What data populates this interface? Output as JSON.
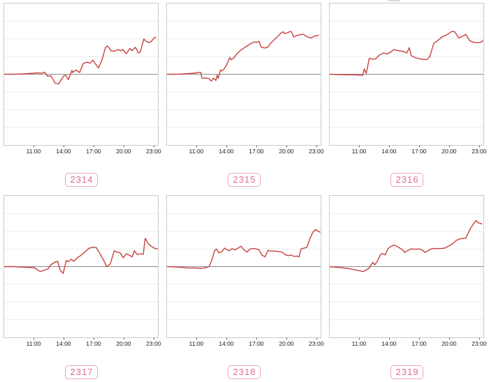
{
  "page": {
    "background": "#ffffff"
  },
  "colors": {
    "line": "#c5423e",
    "zero_line": "#8c8c8c",
    "gridline": "#ececec",
    "chart_border": "#cbcbcb",
    "tick_label_text": "#1a1a1a",
    "badge_text": "#e06d8c",
    "badge_border": "#eba6ba",
    "background": "#ffffff"
  },
  "axis": {
    "tick_labels": [
      "11:00",
      "14:00",
      "17:00",
      "20:00",
      "23:00"
    ],
    "tick_hours": [
      11,
      14,
      17,
      20,
      23
    ]
  },
  "chart_data": [
    {
      "type": "line",
      "label": "2314",
      "xlabel": "",
      "ylabel": "",
      "xlim": [
        8,
        23.5
      ],
      "ylim": [
        -4,
        4
      ],
      "baseline": 0,
      "grid": "horizontal-only",
      "legend": "none",
      "x_tick_labels": [
        "11:00",
        "14:00",
        "17:00",
        "20:00",
        "23:00"
      ],
      "x_tick_hours": [
        11,
        14,
        17,
        20,
        23
      ],
      "points": [
        [
          8,
          0
        ],
        [
          8.5,
          0
        ],
        [
          9,
          0
        ],
        [
          9.5,
          0.01
        ],
        [
          10,
          0.02
        ],
        [
          10.5,
          0.04
        ],
        [
          11,
          0.06
        ],
        [
          11.4,
          0.08
        ],
        [
          11.63,
          0.05
        ],
        [
          12.05,
          0.11
        ],
        [
          12.33,
          -0.11
        ],
        [
          12.67,
          -0.09
        ],
        [
          13.09,
          -0.5
        ],
        [
          13.44,
          -0.55
        ],
        [
          13.93,
          -0.11
        ],
        [
          14.14,
          -0.05
        ],
        [
          14.42,
          -0.3
        ],
        [
          14.77,
          0.22
        ],
        [
          14.84,
          0.1
        ],
        [
          15.19,
          0.24
        ],
        [
          15.54,
          0.1
        ],
        [
          15.89,
          0.6
        ],
        [
          16.23,
          0.68
        ],
        [
          16.58,
          0.63
        ],
        [
          16.86,
          0.8
        ],
        [
          17.07,
          0.63
        ],
        [
          17.42,
          0.35
        ],
        [
          17.77,
          0.8
        ],
        [
          18.12,
          1.5
        ],
        [
          18.33,
          1.6
        ],
        [
          18.68,
          1.33
        ],
        [
          19.02,
          1.3
        ],
        [
          19.37,
          1.4
        ],
        [
          19.65,
          1.33
        ],
        [
          19.86,
          1.4
        ],
        [
          20.21,
          1.16
        ],
        [
          20.56,
          1.46
        ],
        [
          20.77,
          1.33
        ],
        [
          21.12,
          1.53
        ],
        [
          21.4,
          1.2
        ],
        [
          21.61,
          1.26
        ],
        [
          21.96,
          2.0
        ],
        [
          22.17,
          1.86
        ],
        [
          22.45,
          1.8
        ],
        [
          22.66,
          1.83
        ],
        [
          23.01,
          2.06
        ],
        [
          23.15,
          2.1
        ]
      ]
    },
    {
      "type": "line",
      "label": "2315",
      "xlabel": "",
      "ylabel": "",
      "xlim": [
        8,
        23.5
      ],
      "ylim": [
        -4,
        4
      ],
      "baseline": 0,
      "grid": "horizontal-only",
      "legend": "none",
      "x_tick_labels": [
        "11:00",
        "14:00",
        "17:00",
        "20:00",
        "23:00"
      ],
      "x_tick_hours": [
        11,
        14,
        17,
        20,
        23
      ],
      "points": [
        [
          8,
          0
        ],
        [
          9,
          0
        ],
        [
          10,
          0.03
        ],
        [
          10.7,
          0.06
        ],
        [
          11.37,
          0.11
        ],
        [
          11.5,
          -0.22
        ],
        [
          11.84,
          -0.22
        ],
        [
          12.19,
          -0.24
        ],
        [
          12.42,
          -0.39
        ],
        [
          12.66,
          -0.22
        ],
        [
          12.89,
          -0.35
        ],
        [
          13.01,
          -0.06
        ],
        [
          13.12,
          -0.22
        ],
        [
          13.36,
          0.24
        ],
        [
          13.47,
          0.18
        ],
        [
          13.71,
          0.3
        ],
        [
          13.94,
          0.5
        ],
        [
          14.29,
          0.95
        ],
        [
          14.41,
          0.82
        ],
        [
          14.64,
          0.89
        ],
        [
          14.99,
          1.15
        ],
        [
          15.34,
          1.35
        ],
        [
          15.69,
          1.48
        ],
        [
          16.04,
          1.61
        ],
        [
          16.39,
          1.74
        ],
        [
          16.74,
          1.83
        ],
        [
          16.97,
          1.8
        ],
        [
          17.2,
          1.86
        ],
        [
          17.42,
          1.54
        ],
        [
          17.77,
          1.48
        ],
        [
          18.12,
          1.54
        ],
        [
          18.35,
          1.74
        ],
        [
          18.7,
          1.94
        ],
        [
          19.05,
          2.13
        ],
        [
          19.4,
          2.33
        ],
        [
          19.63,
          2.4
        ],
        [
          19.75,
          2.3
        ],
        [
          19.98,
          2.33
        ],
        [
          20.33,
          2.42
        ],
        [
          20.44,
          2.4
        ],
        [
          20.68,
          2.1
        ],
        [
          20.91,
          2.18
        ],
        [
          21.26,
          2.23
        ],
        [
          21.61,
          2.27
        ],
        [
          21.84,
          2.18
        ],
        [
          22.07,
          2.1
        ],
        [
          22.42,
          2.05
        ],
        [
          22.65,
          2.13
        ],
        [
          22.89,
          2.18
        ],
        [
          23.15,
          2.2
        ]
      ]
    },
    {
      "type": "line",
      "label": "2316",
      "xlabel": "",
      "ylabel": "",
      "xlim": [
        8,
        23.5
      ],
      "ylim": [
        -4,
        4
      ],
      "baseline": 0,
      "grid": "horizontal-only",
      "legend": "none",
      "x_tick_labels": [
        "11:00",
        "14:00",
        "17:00",
        "20:00",
        "23:00"
      ],
      "x_tick_hours": [
        11,
        14,
        17,
        20,
        23
      ],
      "points": [
        [
          8,
          0
        ],
        [
          9,
          -0.02
        ],
        [
          10,
          -0.03
        ],
        [
          10.7,
          -0.04
        ],
        [
          11.3,
          -0.05
        ],
        [
          11.45,
          0.3
        ],
        [
          11.65,
          0.05
        ],
        [
          11.95,
          0.9
        ],
        [
          12.3,
          0.85
        ],
        [
          12.6,
          0.88
        ],
        [
          13.0,
          1.1
        ],
        [
          13.4,
          1.2
        ],
        [
          13.7,
          1.15
        ],
        [
          14.1,
          1.25
        ],
        [
          14.4,
          1.4
        ],
        [
          14.7,
          1.35
        ],
        [
          15.0,
          1.32
        ],
        [
          15.4,
          1.28
        ],
        [
          15.7,
          1.2
        ],
        [
          15.95,
          1.5
        ],
        [
          16.15,
          1.05
        ],
        [
          16.5,
          0.95
        ],
        [
          16.9,
          0.88
        ],
        [
          17.3,
          0.85
        ],
        [
          17.7,
          0.82
        ],
        [
          18.0,
          1.0
        ],
        [
          18.4,
          1.75
        ],
        [
          18.8,
          1.9
        ],
        [
          19.2,
          2.1
        ],
        [
          19.6,
          2.2
        ],
        [
          19.9,
          2.3
        ],
        [
          20.2,
          2.42
        ],
        [
          20.5,
          2.4
        ],
        [
          20.9,
          2.05
        ],
        [
          21.3,
          2.15
        ],
        [
          21.6,
          2.25
        ],
        [
          22.0,
          1.9
        ],
        [
          22.4,
          1.8
        ],
        [
          22.8,
          1.78
        ],
        [
          23.1,
          1.8
        ],
        [
          23.3,
          1.9
        ]
      ]
    },
    {
      "type": "line",
      "label": "2317",
      "xlabel": "",
      "ylabel": "",
      "xlim": [
        8,
        23.5
      ],
      "ylim": [
        -4,
        4
      ],
      "baseline": 0,
      "grid": "horizontal-only",
      "legend": "none",
      "x_tick_labels": [
        "11:00",
        "14:00",
        "17:00",
        "20:00",
        "23:00"
      ],
      "x_tick_hours": [
        11,
        14,
        17,
        20,
        23
      ],
      "points": [
        [
          8,
          0
        ],
        [
          9,
          0
        ],
        [
          10,
          -0.03
        ],
        [
          11,
          -0.06
        ],
        [
          11.6,
          -0.28
        ],
        [
          12.0,
          -0.2
        ],
        [
          12.4,
          -0.12
        ],
        [
          12.65,
          0.1
        ],
        [
          13.1,
          0.26
        ],
        [
          13.35,
          0.3
        ],
        [
          13.6,
          -0.2
        ],
        [
          13.9,
          -0.38
        ],
        [
          14.2,
          0.35
        ],
        [
          14.45,
          0.28
        ],
        [
          14.7,
          0.42
        ],
        [
          14.95,
          0.3
        ],
        [
          15.3,
          0.5
        ],
        [
          15.7,
          0.65
        ],
        [
          16.1,
          0.85
        ],
        [
          16.5,
          1.05
        ],
        [
          16.9,
          1.1
        ],
        [
          17.2,
          1.08
        ],
        [
          17.6,
          0.7
        ],
        [
          18.0,
          0.3
        ],
        [
          18.25,
          0.0
        ],
        [
          18.6,
          0.15
        ],
        [
          19.0,
          0.9
        ],
        [
          19.3,
          0.82
        ],
        [
          19.6,
          0.78
        ],
        [
          19.9,
          0.5
        ],
        [
          20.2,
          0.72
        ],
        [
          20.5,
          0.65
        ],
        [
          20.8,
          0.55
        ],
        [
          21.0,
          0.9
        ],
        [
          21.3,
          0.68
        ],
        [
          21.6,
          0.72
        ],
        [
          21.9,
          0.7
        ],
        [
          22.1,
          1.6
        ],
        [
          22.4,
          1.3
        ],
        [
          22.7,
          1.15
        ],
        [
          23.0,
          1.05
        ],
        [
          23.3,
          1.0
        ]
      ]
    },
    {
      "type": "line",
      "label": "2318",
      "xlabel": "",
      "ylabel": "",
      "xlim": [
        8,
        23.5
      ],
      "ylim": [
        -4,
        4
      ],
      "baseline": 0,
      "grid": "horizontal-only",
      "legend": "none",
      "x_tick_labels": [
        "11:00",
        "14:00",
        "17:00",
        "20:00",
        "23:00"
      ],
      "x_tick_hours": [
        11,
        14,
        17,
        20,
        23
      ],
      "points": [
        [
          8,
          0
        ],
        [
          9,
          -0.02
        ],
        [
          10,
          -0.07
        ],
        [
          10.8,
          -0.08
        ],
        [
          11.5,
          -0.1
        ],
        [
          11.9,
          -0.05
        ],
        [
          12.2,
          0.0
        ],
        [
          12.5,
          0.4
        ],
        [
          12.75,
          0.9
        ],
        [
          12.95,
          1.0
        ],
        [
          13.2,
          0.78
        ],
        [
          13.5,
          0.85
        ],
        [
          13.75,
          1.05
        ],
        [
          14.0,
          0.95
        ],
        [
          14.25,
          0.9
        ],
        [
          14.5,
          1.02
        ],
        [
          14.8,
          0.95
        ],
        [
          15.1,
          1.05
        ],
        [
          15.4,
          1.15
        ],
        [
          15.7,
          0.95
        ],
        [
          16.0,
          0.82
        ],
        [
          16.3,
          1.0
        ],
        [
          16.6,
          1.02
        ],
        [
          16.9,
          1.0
        ],
        [
          17.2,
          0.95
        ],
        [
          17.5,
          0.65
        ],
        [
          17.8,
          0.55
        ],
        [
          18.1,
          0.92
        ],
        [
          18.4,
          0.88
        ],
        [
          18.8,
          0.88
        ],
        [
          19.2,
          0.85
        ],
        [
          19.5,
          0.82
        ],
        [
          19.8,
          0.68
        ],
        [
          20.1,
          0.62
        ],
        [
          20.4,
          0.66
        ],
        [
          20.7,
          0.58
        ],
        [
          21.0,
          0.6
        ],
        [
          21.2,
          0.55
        ],
        [
          21.4,
          1.0
        ],
        [
          21.7,
          1.05
        ],
        [
          22.0,
          1.1
        ],
        [
          22.3,
          1.6
        ],
        [
          22.6,
          1.95
        ],
        [
          22.85,
          2.1
        ],
        [
          23.1,
          2.0
        ],
        [
          23.3,
          1.95
        ]
      ]
    },
    {
      "type": "line",
      "label": "2319",
      "xlabel": "",
      "ylabel": "",
      "xlim": [
        8,
        23.5
      ],
      "ylim": [
        -4,
        4
      ],
      "baseline": 0,
      "grid": "horizontal-only",
      "legend": "none",
      "x_tick_labels": [
        "11:00",
        "14:00",
        "17:00",
        "20:00",
        "23:00"
      ],
      "x_tick_hours": [
        11,
        14,
        17,
        20,
        23
      ],
      "points": [
        [
          8,
          0
        ],
        [
          9,
          -0.05
        ],
        [
          10,
          -0.12
        ],
        [
          10.7,
          -0.2
        ],
        [
          11.35,
          -0.28
        ],
        [
          11.9,
          -0.1
        ],
        [
          12.3,
          0.24
        ],
        [
          12.5,
          0.1
        ],
        [
          12.75,
          0.3
        ],
        [
          13.1,
          0.7
        ],
        [
          13.3,
          0.74
        ],
        [
          13.55,
          0.66
        ],
        [
          13.8,
          1.0
        ],
        [
          14.0,
          1.1
        ],
        [
          14.4,
          1.22
        ],
        [
          14.7,
          1.15
        ],
        [
          15.0,
          1.05
        ],
        [
          15.3,
          0.95
        ],
        [
          15.5,
          0.8
        ],
        [
          15.75,
          0.9
        ],
        [
          16.1,
          1.0
        ],
        [
          16.6,
          0.98
        ],
        [
          16.9,
          1.0
        ],
        [
          17.3,
          0.93
        ],
        [
          17.5,
          0.8
        ],
        [
          17.75,
          0.87
        ],
        [
          18.1,
          1.0
        ],
        [
          18.45,
          1.02
        ],
        [
          18.8,
          1.02
        ],
        [
          19.15,
          1.02
        ],
        [
          19.5,
          1.05
        ],
        [
          19.85,
          1.15
        ],
        [
          20.2,
          1.26
        ],
        [
          20.4,
          1.35
        ],
        [
          20.65,
          1.48
        ],
        [
          21.0,
          1.57
        ],
        [
          21.35,
          1.6
        ],
        [
          21.6,
          1.62
        ],
        [
          21.85,
          1.9
        ],
        [
          22.05,
          2.15
        ],
        [
          22.3,
          2.35
        ],
        [
          22.5,
          2.53
        ],
        [
          22.65,
          2.6
        ],
        [
          22.8,
          2.5
        ],
        [
          23.0,
          2.45
        ],
        [
          23.2,
          2.42
        ]
      ]
    }
  ]
}
